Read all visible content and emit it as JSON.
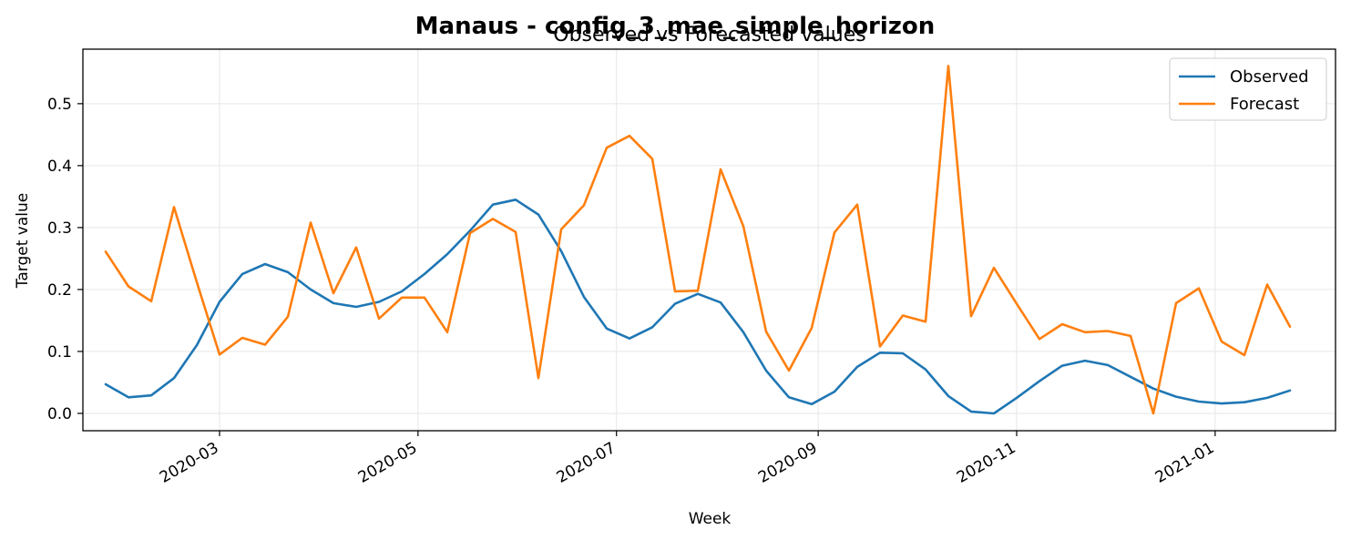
{
  "chart_data": {
    "type": "line",
    "suptitle": "Manaus - config_3_mae_simple_horizon",
    "title": "Observed vs Forecasted values",
    "xlabel": "Week",
    "ylabel": "Target value",
    "x_axis": "date",
    "xlim": [
      "2020-01-19",
      "2021-02-07"
    ],
    "ylim": [
      -0.028,
      0.588
    ],
    "grid": true,
    "legend": "top-right",
    "x_ticks": [
      "2020-03",
      "2020-05",
      "2020-07",
      "2020-09",
      "2020-11",
      "2021-01"
    ],
    "y_ticks": [
      "0.0",
      "0.1",
      "0.2",
      "0.3",
      "0.4",
      "0.5"
    ],
    "x": [
      "2020-01-26",
      "2020-02-02",
      "2020-02-09",
      "2020-02-16",
      "2020-02-23",
      "2020-03-01",
      "2020-03-08",
      "2020-03-15",
      "2020-03-22",
      "2020-03-29",
      "2020-04-05",
      "2020-04-12",
      "2020-04-19",
      "2020-04-26",
      "2020-05-03",
      "2020-05-10",
      "2020-05-17",
      "2020-05-24",
      "2020-05-31",
      "2020-06-07",
      "2020-06-14",
      "2020-06-21",
      "2020-06-28",
      "2020-07-05",
      "2020-07-12",
      "2020-07-19",
      "2020-07-26",
      "2020-08-02",
      "2020-08-09",
      "2020-08-16",
      "2020-08-23",
      "2020-08-30",
      "2020-09-06",
      "2020-09-13",
      "2020-09-20",
      "2020-09-27",
      "2020-10-04",
      "2020-10-11",
      "2020-10-18",
      "2020-10-25",
      "2020-11-01",
      "2020-11-08",
      "2020-11-15",
      "2020-11-22",
      "2020-11-29",
      "2020-12-06",
      "2020-12-13",
      "2020-12-20",
      "2020-12-27",
      "2021-01-03",
      "2021-01-10",
      "2021-01-17",
      "2021-01-24"
    ],
    "series": [
      {
        "name": "Observed",
        "color": "#1f77b4",
        "values": [
          0.047,
          0.026,
          0.029,
          0.057,
          0.11,
          0.18,
          0.225,
          0.241,
          0.228,
          0.2,
          0.178,
          0.172,
          0.18,
          0.197,
          0.225,
          0.257,
          0.295,
          0.337,
          0.345,
          0.321,
          0.262,
          0.188,
          0.137,
          0.121,
          0.139,
          0.177,
          0.193,
          0.179,
          0.131,
          0.069,
          0.026,
          0.015,
          0.035,
          0.075,
          0.098,
          0.097,
          0.071,
          0.028,
          0.003,
          0.0,
          0.025,
          0.052,
          0.077,
          0.085,
          0.078,
          0.059,
          0.04,
          0.027,
          0.019,
          0.016,
          0.018,
          0.025,
          0.037
        ]
      },
      {
        "name": "Forecast",
        "color": "#ff7f0e",
        "values": [
          0.261,
          0.205,
          0.181,
          0.333,
          0.212,
          0.095,
          0.122,
          0.111,
          0.156,
          0.308,
          0.194,
          0.268,
          0.153,
          0.187,
          0.187,
          0.131,
          0.291,
          0.314,
          0.293,
          0.057,
          0.297,
          0.336,
          0.429,
          0.448,
          0.411,
          0.197,
          0.198,
          0.394,
          0.302,
          0.132,
          0.069,
          0.138,
          0.292,
          0.337,
          0.108,
          0.158,
          0.148,
          0.561,
          0.157,
          0.235,
          0.177,
          0.12,
          0.144,
          0.131,
          0.133,
          0.125,
          0.0,
          0.178,
          0.202,
          0.116,
          0.094,
          0.208,
          0.14
        ]
      }
    ]
  },
  "colors": {
    "grid": "#e6e6e6",
    "axis": "#000000",
    "legend_border": "#cccccc"
  }
}
